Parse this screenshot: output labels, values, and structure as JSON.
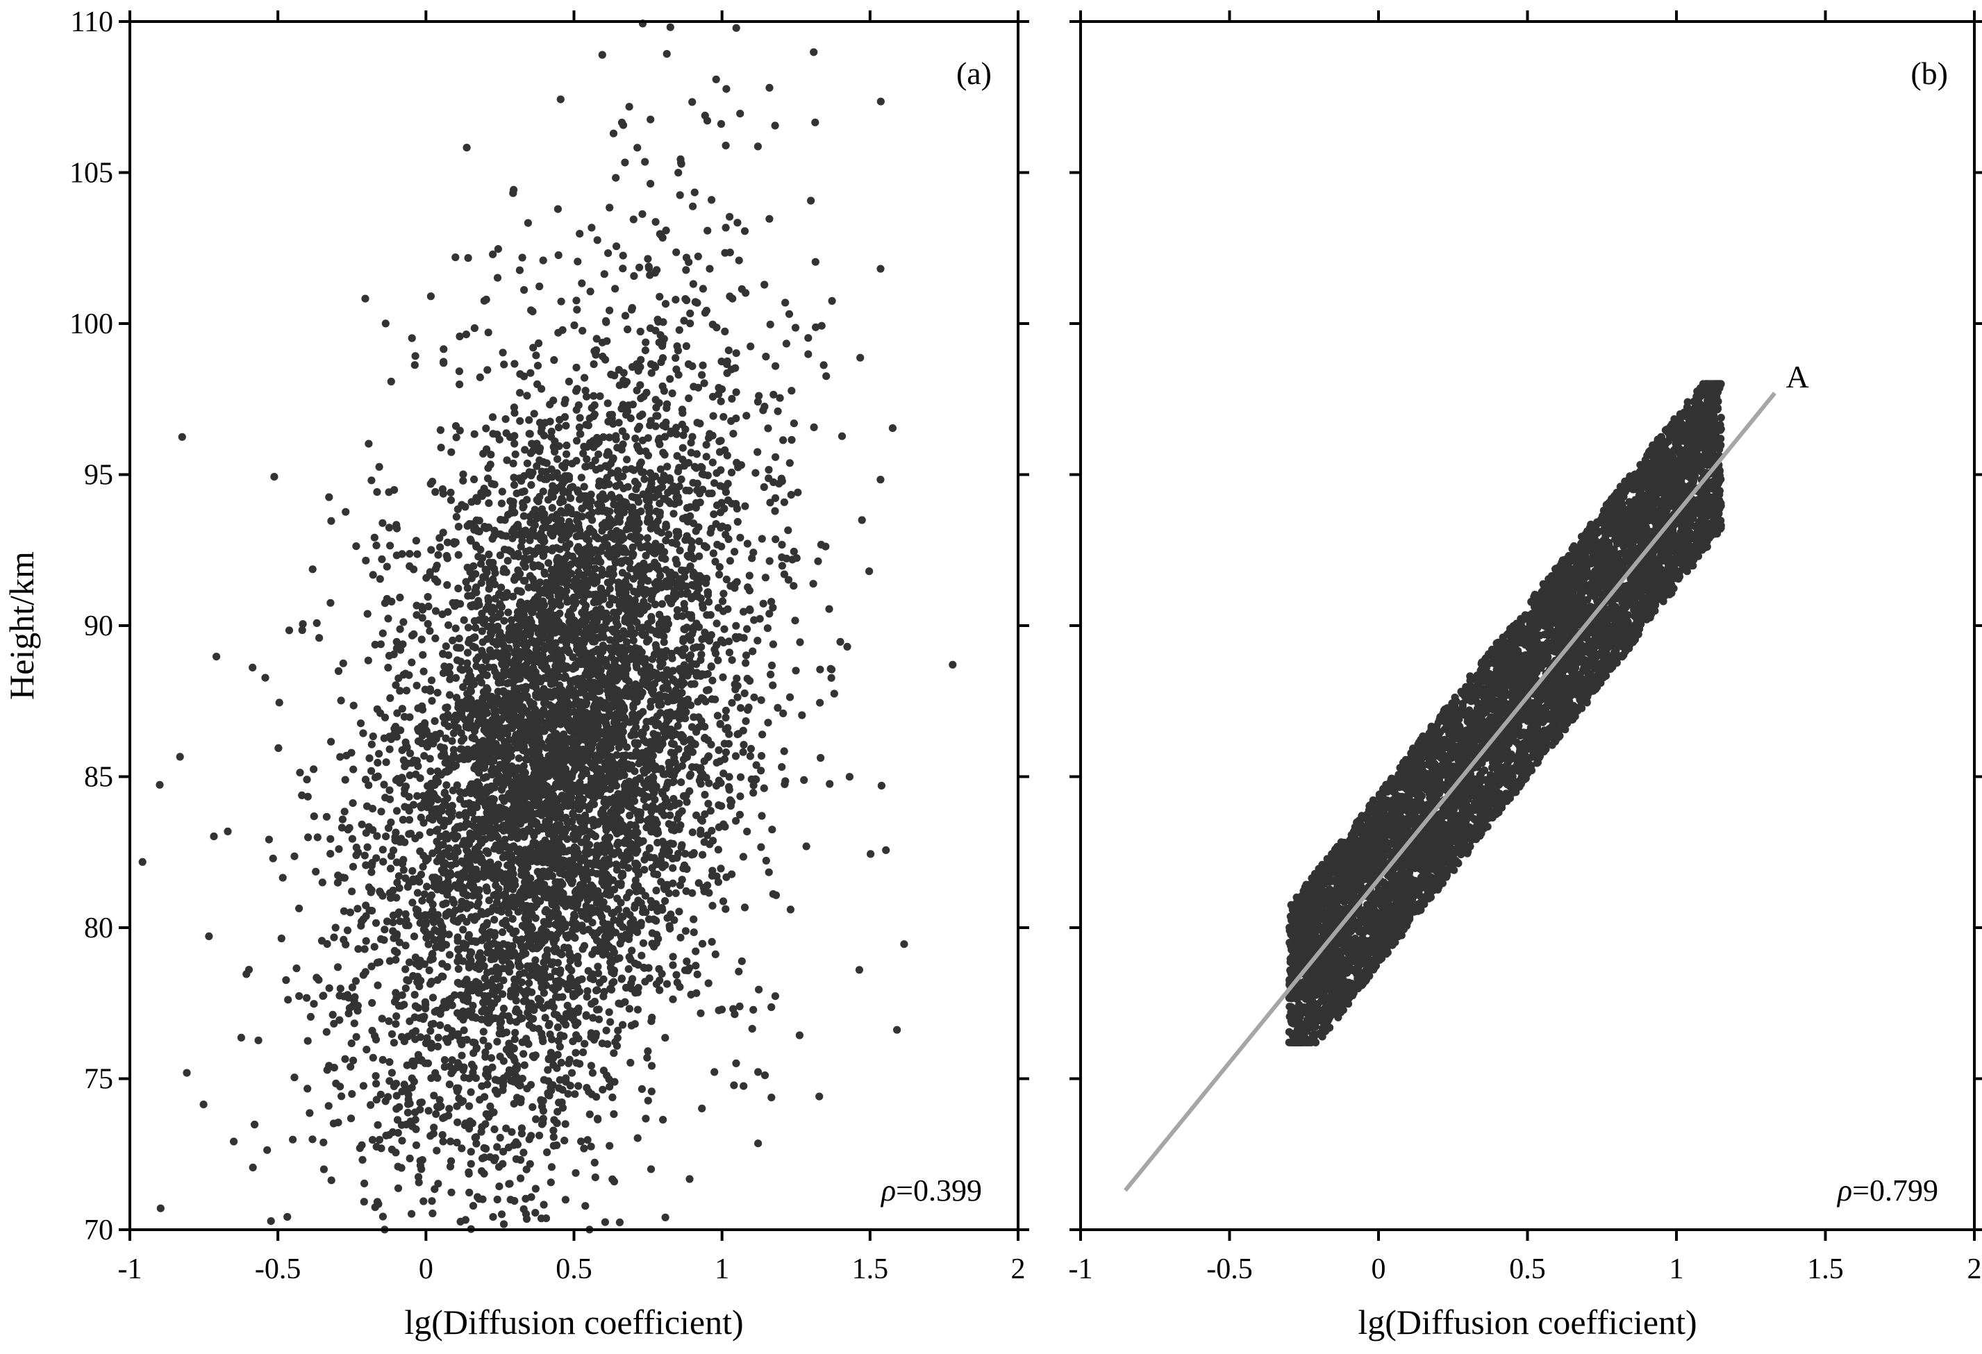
{
  "chart_data": [
    {
      "type": "scatter",
      "panel_label": "(a)",
      "xlabel": "lg(Diffusion coefficient)",
      "ylabel": "Height/km",
      "xlim": [
        -1,
        2
      ],
      "ylim": [
        70,
        110
      ],
      "xticks": [
        "-1",
        "-0.5",
        "0",
        "0.5",
        "1",
        "1.5",
        "2"
      ],
      "yticks": [
        "70",
        "75",
        "80",
        "85",
        "90",
        "95",
        "100",
        "105",
        "110"
      ],
      "annotation": "ρ=0.399",
      "rho_symbol": "ρ",
      "rho_value": "=0.399",
      "point_color": "#333333",
      "distribution": {
        "n": 7000,
        "x_mean": 0.45,
        "x_std": 0.3,
        "y_mean": 86,
        "y_std": 6.2,
        "rho": 0.399
      }
    },
    {
      "type": "scatter",
      "panel_label": "(b)",
      "xlabel": "lg(Diffusion coefficient)",
      "ylabel": "",
      "xlim": [
        -1,
        2
      ],
      "ylim": [
        70,
        110
      ],
      "xticks": [
        "-1",
        "-0.5",
        "0",
        "0.5",
        "1",
        "1.5",
        "2"
      ],
      "annotation": "ρ=0.799",
      "rho_symbol": "ρ",
      "rho_value": "=0.799",
      "point_color": "#333333",
      "distribution": {
        "n": 7000,
        "x_range": [
          -0.3,
          1.15
        ],
        "slope": 12.1,
        "intercept": 81.6,
        "y_noise": 2.6,
        "rho": 0.799
      },
      "fit_line": {
        "label": "A",
        "x": [
          -0.85,
          1.33
        ],
        "y": [
          71.3,
          97.7
        ],
        "color": "#a6a6a6"
      }
    }
  ]
}
